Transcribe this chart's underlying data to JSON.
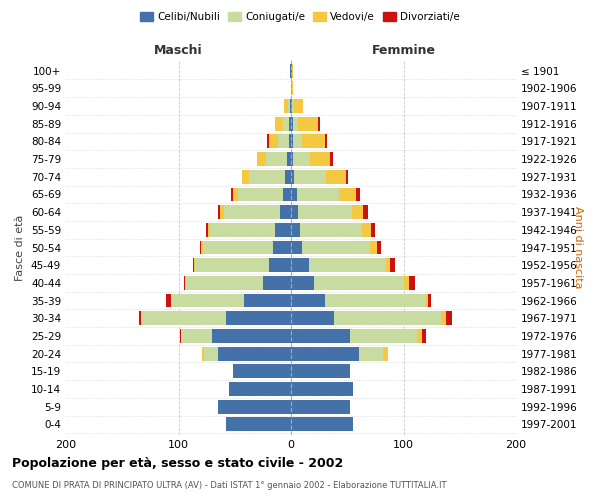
{
  "age_groups": [
    "0-4",
    "5-9",
    "10-14",
    "15-19",
    "20-24",
    "25-29",
    "30-34",
    "35-39",
    "40-44",
    "45-49",
    "50-54",
    "55-59",
    "60-64",
    "65-69",
    "70-74",
    "75-79",
    "80-84",
    "85-89",
    "90-94",
    "95-99",
    "100+"
  ],
  "birth_years": [
    "1997-2001",
    "1992-1996",
    "1987-1991",
    "1982-1986",
    "1977-1981",
    "1972-1976",
    "1967-1971",
    "1962-1966",
    "1957-1961",
    "1952-1956",
    "1947-1951",
    "1942-1946",
    "1937-1941",
    "1932-1936",
    "1927-1931",
    "1922-1926",
    "1917-1921",
    "1912-1916",
    "1907-1911",
    "1902-1906",
    "≤ 1901"
  ],
  "males": {
    "celibi": [
      58,
      65,
      55,
      52,
      65,
      70,
      58,
      42,
      25,
      20,
      16,
      14,
      10,
      7,
      5,
      4,
      2,
      2,
      1,
      0,
      1
    ],
    "coniugati": [
      0,
      0,
      0,
      0,
      12,
      28,
      75,
      65,
      68,
      65,
      62,
      58,
      50,
      40,
      32,
      18,
      10,
      5,
      2,
      0,
      0
    ],
    "vedovi": [
      0,
      0,
      0,
      0,
      2,
      0,
      0,
      0,
      1,
      1,
      2,
      2,
      3,
      5,
      7,
      8,
      8,
      7,
      3,
      0,
      0
    ],
    "divorziati": [
      0,
      0,
      0,
      0,
      0,
      1,
      2,
      4,
      1,
      1,
      1,
      2,
      2,
      1,
      0,
      0,
      1,
      0,
      0,
      0,
      0
    ]
  },
  "females": {
    "nubili": [
      55,
      52,
      55,
      52,
      60,
      52,
      38,
      30,
      20,
      16,
      10,
      8,
      6,
      5,
      3,
      2,
      2,
      2,
      1,
      0,
      1
    ],
    "coniugate": [
      0,
      0,
      0,
      0,
      22,
      60,
      95,
      90,
      80,
      68,
      60,
      55,
      48,
      38,
      28,
      15,
      8,
      4,
      2,
      0,
      0
    ],
    "vedove": [
      0,
      0,
      0,
      0,
      4,
      4,
      5,
      2,
      5,
      4,
      6,
      8,
      10,
      15,
      18,
      18,
      20,
      18,
      8,
      2,
      1
    ],
    "divorziate": [
      0,
      0,
      0,
      0,
      0,
      4,
      5,
      2,
      5,
      4,
      4,
      4,
      4,
      3,
      2,
      2,
      2,
      2,
      0,
      0,
      0
    ]
  },
  "colors": {
    "celibi": "#4472a8",
    "coniugati": "#c8dba0",
    "vedovi": "#f5c842",
    "divorziati": "#cc1111"
  },
  "title": "Popolazione per età, sesso e stato civile - 2002",
  "subtitle": "COMUNE DI PRATA DI PRINCIPATO ULTRA (AV) - Dati ISTAT 1° gennaio 2002 - Elaborazione TUTTITALIA.IT",
  "xlabel_left": "Maschi",
  "xlabel_right": "Femmine",
  "ylabel_left": "Fasce di età",
  "ylabel_right": "Anni di nascita",
  "xlim": 200,
  "legend_labels": [
    "Celibi/Nubili",
    "Coniugati/e",
    "Vedovi/e",
    "Divorziati/e"
  ],
  "bg_color": "#ffffff",
  "grid_color": "#cccccc"
}
